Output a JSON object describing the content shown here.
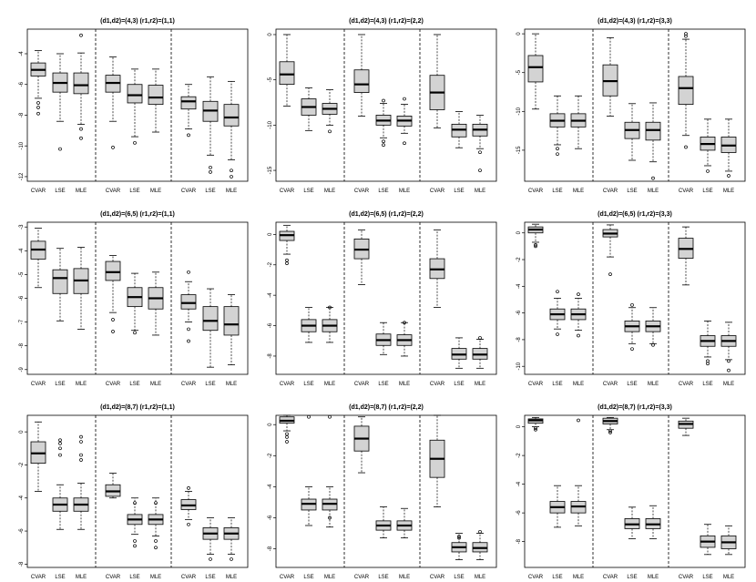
{
  "figure": {
    "rows": 3,
    "cols": 3,
    "colors": {
      "box_fill": "#d3d3d3",
      "stroke": "#000000",
      "background": "#ffffff"
    }
  },
  "chart_data": [
    {
      "type": "boxplot",
      "title": "(d1,d2)=(4,3)   (r1,r2)=(1,1)",
      "ylim": [
        -12.3,
        -2.4
      ],
      "yticks": [
        -4,
        -6,
        -8,
        -10,
        -12
      ],
      "groups": [
        "CVAR",
        "LSE",
        "MLE",
        "CVAR",
        "LSE",
        "MLE",
        "CVAR",
        "LSE",
        "MLE"
      ],
      "boxes": [
        {
          "q1": -5.45,
          "med": -5.05,
          "q3": -4.6,
          "wlo": -6.9,
          "whi": -3.8,
          "out": [
            -7.2,
            -7.5,
            -7.9
          ]
        },
        {
          "q1": -6.5,
          "med": -5.9,
          "q3": -5.25,
          "wlo": -8.4,
          "whi": -4.0,
          "out": [
            -10.2
          ]
        },
        {
          "q1": -6.6,
          "med": -6.05,
          "q3": -5.25,
          "wlo": -8.6,
          "whi": -3.95,
          "out": [
            -2.8,
            -8.9,
            -9.5
          ]
        },
        {
          "q1": -6.5,
          "med": -5.9,
          "q3": -5.4,
          "wlo": -8.4,
          "whi": -4.2,
          "out": [
            -10.1
          ]
        },
        {
          "q1": -7.2,
          "med": -6.7,
          "q3": -6.0,
          "wlo": -9.4,
          "whi": -5.0,
          "out": [
            -9.8
          ]
        },
        {
          "q1": -7.3,
          "med": -6.85,
          "q3": -6.05,
          "wlo": -9.1,
          "whi": -5.0,
          "out": []
        },
        {
          "q1": -7.6,
          "med": -7.1,
          "q3": -6.8,
          "wlo": -8.9,
          "whi": -6.0,
          "out": [
            -9.3
          ]
        },
        {
          "q1": -8.4,
          "med": -7.7,
          "q3": -7.1,
          "wlo": -10.6,
          "whi": -5.5,
          "out": [
            -11.4,
            -11.7
          ]
        },
        {
          "q1": -8.7,
          "med": -8.15,
          "q3": -7.3,
          "wlo": -10.9,
          "whi": -5.8,
          "out": [
            -11.6,
            -12.0
          ]
        }
      ]
    },
    {
      "type": "boxplot",
      "title": "(d1,d2)=(4,3)   (r1,r2)=(2,2)",
      "ylim": [
        -16.2,
        0.6
      ],
      "yticks": [
        0,
        -5,
        -10,
        -15
      ],
      "groups": [
        "CVAR",
        "LSE",
        "MLE",
        "CVAR",
        "LSE",
        "MLE",
        "CVAR",
        "LSE",
        "MLE"
      ],
      "boxes": [
        {
          "q1": -5.5,
          "med": -4.4,
          "q3": -3.0,
          "wlo": -7.9,
          "whi": 0.0,
          "out": []
        },
        {
          "q1": -8.9,
          "med": -8.0,
          "q3": -7.1,
          "wlo": -10.6,
          "whi": -5.9,
          "out": []
        },
        {
          "q1": -8.8,
          "med": -8.2,
          "q3": -7.6,
          "wlo": -10.0,
          "whi": -6.1,
          "out": [
            -10.7
          ]
        },
        {
          "q1": -6.4,
          "med": -5.5,
          "q3": -3.9,
          "wlo": -9.0,
          "whi": 0.0,
          "out": []
        },
        {
          "q1": -10.0,
          "med": -9.5,
          "q3": -8.9,
          "wlo": -11.4,
          "whi": -7.6,
          "out": [
            -7.3,
            -11.8,
            -12.2
          ]
        },
        {
          "q1": -10.1,
          "med": -9.5,
          "q3": -9.0,
          "wlo": -10.9,
          "whi": -7.7,
          "out": [
            -7.1,
            -12.0
          ]
        },
        {
          "q1": -8.3,
          "med": -6.4,
          "q3": -4.5,
          "wlo": -10.3,
          "whi": 0.0,
          "out": []
        },
        {
          "q1": -11.3,
          "med": -10.5,
          "q3": -9.9,
          "wlo": -12.5,
          "whi": -8.5,
          "out": []
        },
        {
          "q1": -11.2,
          "med": -10.5,
          "q3": -9.9,
          "wlo": -12.6,
          "whi": -8.9,
          "out": [
            -13.0,
            -15.0
          ]
        }
      ]
    },
    {
      "type": "boxplot",
      "title": "(d1,d2)=(4,3)   (r1,r2)=(3,3)",
      "ylim": [
        -19.0,
        0.6
      ],
      "yticks": [
        0,
        -5,
        -10,
        -15
      ],
      "groups": [
        "CVAR",
        "LSE",
        "MLE",
        "CVAR",
        "LSE",
        "MLE",
        "CVAR",
        "LSE",
        "MLE"
      ],
      "boxes": [
        {
          "q1": -6.2,
          "med": -4.3,
          "q3": -2.8,
          "wlo": -9.7,
          "whi": 0.0,
          "out": []
        },
        {
          "q1": -12.0,
          "med": -11.2,
          "q3": -10.3,
          "wlo": -14.3,
          "whi": -8.0,
          "out": [
            -14.8,
            -15.5
          ]
        },
        {
          "q1": -12.0,
          "med": -11.2,
          "q3": -10.3,
          "wlo": -14.8,
          "whi": -8.0,
          "out": []
        },
        {
          "q1": -8.0,
          "med": -6.1,
          "q3": -4.0,
          "wlo": -10.6,
          "whi": -0.5,
          "out": []
        },
        {
          "q1": -13.5,
          "med": -12.4,
          "q3": -11.4,
          "wlo": -16.3,
          "whi": -9.0,
          "out": []
        },
        {
          "q1": -13.7,
          "med": -12.4,
          "q3": -11.4,
          "wlo": -16.5,
          "whi": -8.9,
          "out": [
            -18.6
          ]
        },
        {
          "q1": -9.1,
          "med": -7.0,
          "q3": -5.5,
          "wlo": -13.1,
          "whi": -0.7,
          "out": [
            0.0,
            -0.3,
            -14.6
          ]
        },
        {
          "q1": -15.0,
          "med": -14.2,
          "q3": -13.3,
          "wlo": -17.0,
          "whi": -11.0,
          "out": [
            -17.7
          ]
        },
        {
          "q1": -15.3,
          "med": -14.4,
          "q3": -13.3,
          "wlo": -17.7,
          "whi": -11.0,
          "out": [
            -18.3
          ]
        }
      ]
    },
    {
      "type": "boxplot",
      "title": "(d1,d2)=(6,5)   (r1,r2)=(1,1)",
      "ylim": [
        -9.2,
        -2.8
      ],
      "yticks": [
        -3,
        -4,
        -5,
        -6,
        -7,
        -8,
        -9
      ],
      "groups": [
        "CVAR",
        "LSE",
        "MLE",
        "CVAR",
        "LSE",
        "MLE",
        "CVAR",
        "LSE",
        "MLE"
      ],
      "boxes": [
        {
          "q1": -4.35,
          "med": -3.95,
          "q3": -3.6,
          "wlo": -5.55,
          "whi": -3.05,
          "out": []
        },
        {
          "q1": -5.8,
          "med": -5.15,
          "q3": -4.8,
          "wlo": -6.95,
          "whi": -3.9,
          "out": []
        },
        {
          "q1": -5.8,
          "med": -5.25,
          "q3": -4.75,
          "wlo": -7.3,
          "whi": -3.85,
          "out": []
        },
        {
          "q1": -5.25,
          "med": -4.9,
          "q3": -4.45,
          "wlo": -6.6,
          "whi": -4.2,
          "out": [
            -6.9,
            -7.4
          ]
        },
        {
          "q1": -6.35,
          "med": -5.95,
          "q3": -5.55,
          "wlo": -7.35,
          "whi": -4.95,
          "out": [
            -7.45
          ]
        },
        {
          "q1": -6.45,
          "med": -6.0,
          "q3": -5.55,
          "wlo": -7.55,
          "whi": -4.9,
          "out": []
        },
        {
          "q1": -6.45,
          "med": -6.2,
          "q3": -5.85,
          "wlo": -7.0,
          "whi": -5.3,
          "out": [
            -4.9,
            -7.3,
            -7.8
          ]
        },
        {
          "q1": -7.35,
          "med": -6.95,
          "q3": -6.35,
          "wlo": -8.9,
          "whi": -5.6,
          "out": []
        },
        {
          "q1": -7.55,
          "med": -7.1,
          "q3": -6.35,
          "wlo": -8.8,
          "whi": -5.85,
          "out": []
        }
      ]
    },
    {
      "type": "boxplot",
      "title": "(d1,d2)=(6,5)   (r1,r2)=(2,2)",
      "ylim": [
        -9.2,
        0.8
      ],
      "yticks": [
        0,
        -2,
        -4,
        -6,
        -8
      ],
      "groups": [
        "CVAR",
        "LSE",
        "MLE",
        "CVAR",
        "LSE",
        "MLE",
        "CVAR",
        "LSE",
        "MLE"
      ],
      "boxes": [
        {
          "q1": -0.4,
          "med": -0.05,
          "q3": 0.2,
          "wlo": -1.3,
          "whi": 0.6,
          "out": [
            -1.7,
            -1.9
          ]
        },
        {
          "q1": -6.4,
          "med": -6.0,
          "q3": -5.6,
          "wlo": -7.1,
          "whi": -4.8,
          "out": []
        },
        {
          "q1": -6.4,
          "med": -6.0,
          "q3": -5.6,
          "wlo": -7.1,
          "whi": -4.8,
          "out": [
            -4.8
          ]
        },
        {
          "q1": -1.6,
          "med": -1.0,
          "q3": -0.3,
          "wlo": -3.3,
          "whi": 0.3,
          "out": []
        },
        {
          "q1": -7.3,
          "med": -6.95,
          "q3": -6.55,
          "wlo": -7.9,
          "whi": -5.8,
          "out": []
        },
        {
          "q1": -7.3,
          "med": -6.95,
          "q3": -6.6,
          "wlo": -8.0,
          "whi": -5.8,
          "out": [
            -5.8
          ]
        },
        {
          "q1": -2.9,
          "med": -2.3,
          "q3": -1.6,
          "wlo": -4.8,
          "whi": 0.3,
          "out": []
        },
        {
          "q1": -8.2,
          "med": -7.9,
          "q3": -7.5,
          "wlo": -8.8,
          "whi": -6.8,
          "out": []
        },
        {
          "q1": -8.2,
          "med": -7.9,
          "q3": -7.5,
          "wlo": -8.8,
          "whi": -6.9,
          "out": [
            -6.8
          ]
        }
      ]
    },
    {
      "type": "boxplot",
      "title": "(d1,d2)=(6,5)   (r1,r2)=(3,3)",
      "ylim": [
        -10.6,
        0.8
      ],
      "yticks": [
        0,
        -2,
        -4,
        -6,
        -8,
        -10
      ],
      "groups": [
        "CVAR",
        "LSE",
        "MLE",
        "CVAR",
        "LSE",
        "MLE",
        "CVAR",
        "LSE",
        "MLE"
      ],
      "boxes": [
        {
          "q1": 0.0,
          "med": 0.25,
          "q3": 0.45,
          "wlo": -0.7,
          "whi": 0.65,
          "out": [
            -0.9,
            -1.0
          ]
        },
        {
          "q1": -6.5,
          "med": -6.1,
          "q3": -5.7,
          "wlo": -7.2,
          "whi": -4.9,
          "out": [
            -4.4,
            -7.6
          ]
        },
        {
          "q1": -6.5,
          "med": -6.1,
          "q3": -5.7,
          "wlo": -7.3,
          "whi": -4.9,
          "out": [
            -4.6,
            -7.7
          ]
        },
        {
          "q1": -0.3,
          "med": -0.05,
          "q3": 0.25,
          "wlo": -1.8,
          "whi": 0.6,
          "out": [
            -3.1
          ]
        },
        {
          "q1": -7.4,
          "med": -7.0,
          "q3": -6.6,
          "wlo": -8.3,
          "whi": -5.6,
          "out": [
            -5.4,
            -8.7
          ]
        },
        {
          "q1": -7.4,
          "med": -7.0,
          "q3": -6.6,
          "wlo": -8.3,
          "whi": -5.6,
          "out": [
            -8.4
          ]
        },
        {
          "q1": -1.9,
          "med": -1.2,
          "q3": -0.4,
          "wlo": -3.9,
          "whi": 0.45,
          "out": []
        },
        {
          "q1": -8.5,
          "med": -8.1,
          "q3": -7.7,
          "wlo": -9.3,
          "whi": -6.6,
          "out": [
            -9.6,
            -9.8
          ]
        },
        {
          "q1": -8.5,
          "med": -8.1,
          "q3": -7.7,
          "wlo": -9.5,
          "whi": -6.7,
          "out": [
            -9.6,
            -10.3
          ]
        }
      ]
    },
    {
      "type": "boxplot",
      "title": "(d1,d2)=(8,7)   (r1,r2)=(1,1)",
      "ylim": [
        -8.2,
        1.0
      ],
      "yticks": [
        0,
        -2,
        -4,
        -6,
        -8
      ],
      "groups": [
        "CVAR",
        "LSE",
        "MLE",
        "CVAR",
        "LSE",
        "MLE",
        "CVAR",
        "LSE",
        "MLE"
      ],
      "boxes": [
        {
          "q1": -1.9,
          "med": -1.3,
          "q3": -0.6,
          "wlo": -3.6,
          "whi": 0.6,
          "out": []
        },
        {
          "q1": -4.8,
          "med": -4.4,
          "q3": -4.0,
          "wlo": -5.9,
          "whi": -3.2,
          "out": [
            -0.5,
            -0.7,
            -1.0,
            -1.4
          ]
        },
        {
          "q1": -4.8,
          "med": -4.4,
          "q3": -4.0,
          "wlo": -5.9,
          "whi": -3.1,
          "out": [
            -0.3,
            -0.6,
            -1.4,
            -1.7
          ]
        },
        {
          "q1": -3.9,
          "med": -3.6,
          "q3": -3.2,
          "wlo": -4.0,
          "whi": -2.5,
          "out": []
        },
        {
          "q1": -5.6,
          "med": -5.3,
          "q3": -5.0,
          "wlo": -6.2,
          "whi": -4.0,
          "out": [
            -4.3,
            -6.6,
            -6.9
          ]
        },
        {
          "q1": -5.6,
          "med": -5.3,
          "q3": -5.0,
          "wlo": -6.3,
          "whi": -4.0,
          "out": [
            -4.3,
            -6.6,
            -7.0
          ]
        },
        {
          "q1": -4.7,
          "med": -4.45,
          "q3": -4.1,
          "wlo": -5.3,
          "whi": -3.6,
          "out": [
            -3.4,
            -5.6
          ]
        },
        {
          "q1": -6.5,
          "med": -6.15,
          "q3": -5.8,
          "wlo": -7.4,
          "whi": -5.2,
          "out": [
            -7.7
          ]
        },
        {
          "q1": -6.5,
          "med": -6.15,
          "q3": -5.8,
          "wlo": -7.4,
          "whi": -5.2,
          "out": [
            -7.7
          ]
        }
      ]
    },
    {
      "type": "boxplot",
      "title": "(d1,d2)=(8,7)   (r1,r2)=(2,2)",
      "ylim": [
        -9.2,
        0.6
      ],
      "yticks": [
        0,
        -2,
        -4,
        -6,
        -8
      ],
      "groups": [
        "CVAR",
        "LSE",
        "MLE",
        "CVAR",
        "LSE",
        "MLE",
        "CVAR",
        "LSE",
        "MLE"
      ],
      "boxes": [
        {
          "q1": 0.1,
          "med": 0.25,
          "q3": 0.5,
          "wlo": -0.4,
          "whi": 0.6,
          "out": [
            -0.6,
            -0.8,
            -1.1
          ]
        },
        {
          "q1": -5.5,
          "med": -5.1,
          "q3": -4.8,
          "wlo": -6.5,
          "whi": -4.0,
          "out": [
            0.5
          ]
        },
        {
          "q1": -5.5,
          "med": -5.1,
          "q3": -4.8,
          "wlo": -6.6,
          "whi": -4.0,
          "out": [
            0.5,
            -6.0
          ]
        },
        {
          "q1": -1.7,
          "med": -0.9,
          "q3": -0.1,
          "wlo": -3.1,
          "whi": 0.5,
          "out": []
        },
        {
          "q1": -6.8,
          "med": -6.5,
          "q3": -6.2,
          "wlo": -7.3,
          "whi": -5.3,
          "out": []
        },
        {
          "q1": -6.8,
          "med": -6.5,
          "q3": -6.2,
          "wlo": -7.3,
          "whi": -5.4,
          "out": []
        },
        {
          "q1": -3.4,
          "med": -2.2,
          "q3": -1.0,
          "wlo": -5.3,
          "whi": 0.6,
          "out": []
        },
        {
          "q1": -8.2,
          "med": -7.9,
          "q3": -7.6,
          "wlo": -8.7,
          "whi": -7.0,
          "out": [
            -7.2,
            -7.3
          ]
        },
        {
          "q1": -8.2,
          "med": -7.95,
          "q3": -7.6,
          "wlo": -8.7,
          "whi": -7.0,
          "out": [
            -6.9
          ]
        }
      ]
    },
    {
      "type": "boxplot",
      "title": "(d1,d2)=(8,7)   (r1,r2)=(3,3)",
      "ylim": [
        -9.8,
        0.8
      ],
      "yticks": [
        0,
        -2,
        -4,
        -6,
        -8
      ],
      "groups": [
        "CVAR",
        "LSE",
        "MLE",
        "CVAR",
        "LSE",
        "MLE",
        "CVAR",
        "LSE",
        "MLE"
      ],
      "boxes": [
        {
          "q1": 0.25,
          "med": 0.45,
          "q3": 0.55,
          "wlo": 0.0,
          "whi": 0.65,
          "out": [
            -0.1,
            -0.2
          ]
        },
        {
          "q1": -6.0,
          "med": -5.6,
          "q3": -5.2,
          "wlo": -7.0,
          "whi": -4.1,
          "out": []
        },
        {
          "q1": -6.0,
          "med": -5.55,
          "q3": -5.2,
          "wlo": -6.9,
          "whi": -4.1,
          "out": [
            0.45
          ]
        },
        {
          "q1": 0.2,
          "med": 0.4,
          "q3": 0.6,
          "wlo": -0.2,
          "whi": 0.65,
          "out": [
            -0.3,
            -0.4
          ]
        },
        {
          "q1": -7.1,
          "med": -6.8,
          "q3": -6.4,
          "wlo": -7.8,
          "whi": -5.6,
          "out": []
        },
        {
          "q1": -7.1,
          "med": -6.8,
          "q3": -6.4,
          "wlo": -7.8,
          "whi": -5.5,
          "out": []
        },
        {
          "q1": -0.1,
          "med": 0.2,
          "q3": 0.4,
          "wlo": -0.6,
          "whi": 0.6,
          "out": []
        },
        {
          "q1": -8.4,
          "med": -8.0,
          "q3": -7.6,
          "wlo": -8.9,
          "whi": -6.8,
          "out": []
        },
        {
          "q1": -8.5,
          "med": -8.05,
          "q3": -7.6,
          "wlo": -8.9,
          "whi": -6.9,
          "out": []
        }
      ]
    }
  ]
}
